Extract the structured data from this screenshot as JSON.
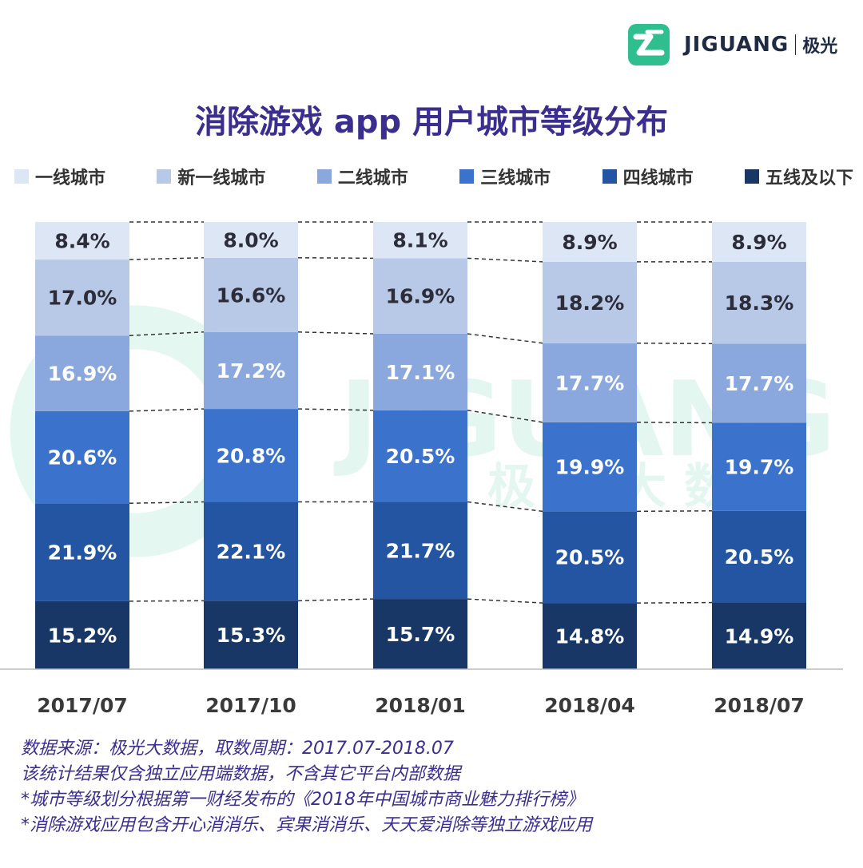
{
  "logo": {
    "name": "JIGUANG",
    "name_cn": "极光",
    "watermark": "JIGUANG",
    "watermark_cn": "极光大数据"
  },
  "chart_data": {
    "type": "bar",
    "stacked": true,
    "percent": true,
    "title": "消除游戏 app 用户城市等级分布",
    "categories": [
      "2017/07",
      "2017/10",
      "2018/01",
      "2018/04",
      "2018/07"
    ],
    "series": [
      {
        "name": "一线城市",
        "color": "#dde6f4",
        "values": [
          8.4,
          8.0,
          8.1,
          8.9,
          8.9
        ]
      },
      {
        "name": "新一线城市",
        "color": "#b7c9e7",
        "values": [
          17.0,
          16.6,
          16.9,
          18.2,
          18.3
        ]
      },
      {
        "name": "二线城市",
        "color": "#8aa8de",
        "values": [
          16.9,
          17.2,
          17.1,
          17.7,
          17.7
        ]
      },
      {
        "name": "三线城市",
        "color": "#3b73cc",
        "values": [
          20.6,
          20.8,
          20.5,
          19.9,
          19.7
        ]
      },
      {
        "name": "四线城市",
        "color": "#2455a2",
        "values": [
          21.9,
          22.1,
          21.7,
          20.5,
          20.5
        ]
      },
      {
        "name": "五线及以下",
        "color": "#183766",
        "values": [
          15.2,
          15.3,
          15.7,
          14.8,
          14.9
        ]
      }
    ],
    "value_suffix": "%",
    "legend_position": "top",
    "connector_lines": "dashed"
  },
  "notes": [
    "数据来源：极光大数据，取数周期：2017.07-2018.07",
    "该统计结果仅含独立应用端数据，不含其它平台内部数据",
    "*城市等级划分根据第一财经发布的《2018年中国城市商业魅力排行榜》",
    "*消除游戏应用包含开心消消乐、宾果消消乐、天天爱消除等独立游戏应用"
  ]
}
